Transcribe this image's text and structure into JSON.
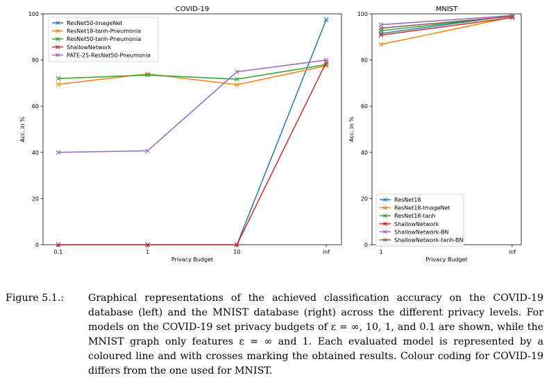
{
  "chart_data": [
    {
      "type": "line",
      "title": "COVID-19",
      "xlabel": "Privacy Budget",
      "ylabel": "Acc. in %",
      "categories": [
        "0.1",
        "1",
        "10",
        "inf"
      ],
      "ylim": [
        0,
        100
      ],
      "yticks": [
        0,
        20,
        40,
        60,
        80,
        100
      ],
      "grid": false,
      "legend_position": "top-left",
      "marker": "x",
      "series": [
        {
          "name": "ResNet50-ImageNet",
          "color": "#1f77b4",
          "values": [
            0,
            0,
            0,
            97.5
          ]
        },
        {
          "name": "ResNet18-tanh-Pneumonia",
          "color": "#ff7f0e",
          "values": [
            69.5,
            74.0,
            69.3,
            77.5
          ]
        },
        {
          "name": "ResNet50-tanh-Pneumonia",
          "color": "#2ca02c",
          "values": [
            72.0,
            73.5,
            71.7,
            78.0
          ]
        },
        {
          "name": "ShallowNetwork",
          "color": "#d62728",
          "values": [
            0,
            0,
            0,
            79.0
          ]
        },
        {
          "name": "PATE-25-ResNet50-Pneumonia",
          "color": "#9467bd",
          "values": [
            40.0,
            40.7,
            74.9,
            80.0
          ]
        }
      ]
    },
    {
      "type": "line",
      "title": "MNIST",
      "xlabel": "Privacy Budget",
      "ylabel": "Acc. in %",
      "categories": [
        "1",
        "inf"
      ],
      "ylim": [
        0,
        100
      ],
      "yticks": [
        0,
        20,
        40,
        60,
        80,
        100
      ],
      "grid": false,
      "legend_position": "bottom-left",
      "marker": "x",
      "series": [
        {
          "name": "ResNet18",
          "color": "#1f77b4",
          "values": [
            91.5,
            99.2
          ]
        },
        {
          "name": "ResNet18-ImageNet",
          "color": "#ff7f0e",
          "values": [
            86.8,
            98.6
          ]
        },
        {
          "name": "ResNet18-tanh",
          "color": "#2ca02c",
          "values": [
            92.7,
            99.0
          ]
        },
        {
          "name": "ShallowNetwork",
          "color": "#d62728",
          "values": [
            90.8,
            98.4
          ]
        },
        {
          "name": "ShallowNetwork-BN",
          "color": "#9467bd",
          "values": [
            95.3,
            99.3
          ]
        },
        {
          "name": "ShallowNetwork-tanh-BN",
          "color": "#8c564b",
          "values": [
            93.8,
            98.9
          ]
        }
      ]
    }
  ],
  "caption": {
    "label": "Figure 5.1.:",
    "text": "Graphical representations of the achieved classification accuracy on the COVID-19 database (left) and the MNIST database (right) across the different privacy levels. For models on the COVID-19 set privacy budgets of ε = ∞, 10, 1, and 0.1 are shown, while the MNIST graph only features ε = ∞ and 1. Each evaluated model is represented by a coloured line and with crosses marking the obtained results. Colour coding for COVID-19 differs from the one used for MNIST."
  }
}
